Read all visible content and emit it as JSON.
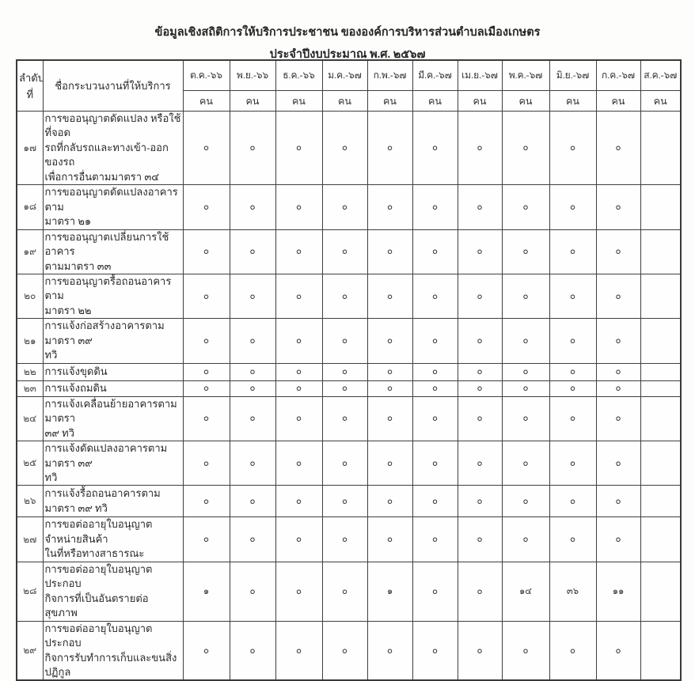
{
  "document": {
    "title_line1": "ข้อมูลเชิงสถิติการให้บริการประชาชน ขององค์การบริหารส่วนตำบลเมืองเกษตร",
    "title_line2": "ประจำปีงบประมาณ พ.ศ. ๒๕๖๗"
  },
  "table": {
    "headers": {
      "order": "ลำดับที่",
      "process": "ชื่อกระบวนงานที่ให้บริการ",
      "unit": "คน",
      "months": [
        "ต.ค.-๖๖",
        "พ.ย.-๖๖",
        "ธ.ค.-๖๖",
        "ม.ค.-๖๗",
        "ก.พ.-๖๗",
        "มี.ค.-๖๗",
        "เม.ย.-๖๗",
        "พ.ค.-๖๗",
        "มิ.ย.-๖๗",
        "ก.ค.-๖๗",
        "ส.ค.-๖๗"
      ]
    },
    "rows": [
      {
        "no": "๑๗",
        "name": "การขออนุญาตดัดแปลง  หรือใช้ที่จอด\nรถที่กลับรถและทางเข้า-ออกของรถ\nเพื่อการอื่นตามมาตรา ๓๔",
        "values": [
          "๐",
          "๐",
          "๐",
          "๐",
          "๐",
          "๐",
          "๐",
          "๐",
          "๐",
          "๐",
          ""
        ]
      },
      {
        "no": "๑๘",
        "name": "การขออนุญาตดัดแปลงอาคาร ตาม\nมาตรา ๒๑",
        "values": [
          "๐",
          "๐",
          "๐",
          "๐",
          "๐",
          "๐",
          "๐",
          "๐",
          "๐",
          "๐",
          ""
        ]
      },
      {
        "no": "๑๙",
        "name": "การขออนุญาตเปลี่ยนการใช้อาคาร\nตามมาตรา  ๓๓",
        "values": [
          "๐",
          "๐",
          "๐",
          "๐",
          "๐",
          "๐",
          "๐",
          "๐",
          "๐",
          "๐",
          ""
        ]
      },
      {
        "no": "๒๐",
        "name": "การขออนุญาตรื้อถอนอาคาร ตาม\nมาตรา ๒๒",
        "values": [
          "๐",
          "๐",
          "๐",
          "๐",
          "๐",
          "๐",
          "๐",
          "๐",
          "๐",
          "๐",
          ""
        ]
      },
      {
        "no": "๒๑",
        "name": "การแจ้งก่อสร้างอาคารตามมาตรา ๓๙\nทวิ",
        "values": [
          "๐",
          "๐",
          "๐",
          "๐",
          "๐",
          "๐",
          "๐",
          "๐",
          "๐",
          "๐",
          ""
        ]
      },
      {
        "no": "๒๒",
        "name": "การแจ้งขุดดิน",
        "values": [
          "๐",
          "๐",
          "๐",
          "๐",
          "๐",
          "๐",
          "๐",
          "๐",
          "๐",
          "๐",
          ""
        ]
      },
      {
        "no": "๒๓",
        "name": "การแจ้งถมดิน",
        "values": [
          "๐",
          "๐",
          "๐",
          "๐",
          "๐",
          "๐",
          "๐",
          "๐",
          "๐",
          "๐",
          ""
        ]
      },
      {
        "no": "๒๔",
        "name": "การแจ้งเคลื่อนย้ายอาคารตามมาตรา\n๓๙ ทวิ",
        "values": [
          "๐",
          "๐",
          "๐",
          "๐",
          "๐",
          "๐",
          "๐",
          "๐",
          "๐",
          "๐",
          ""
        ]
      },
      {
        "no": "๒๕",
        "name": "การแจ้งดัดแปลงอาคารตามมาตรา ๓๙\n ทวิ",
        "values": [
          "๐",
          "๐",
          "๐",
          "๐",
          "๐",
          "๐",
          "๐",
          "๐",
          "๐",
          "๐",
          ""
        ]
      },
      {
        "no": "๒๖",
        "name": "การแจ้งรื้อถอนอาคารตามมาตรา ๓๙ ทวิ",
        "values": [
          "๐",
          "๐",
          "๐",
          "๐",
          "๐",
          "๐",
          "๐",
          "๐",
          "๐",
          "๐",
          ""
        ]
      },
      {
        "no": "๒๗",
        "name": "การขอต่ออายุใบอนุญาตจำหน่ายสินค้า\nในที่หรือทางสาธารณะ",
        "values": [
          "๐",
          "๐",
          "๐",
          "๐",
          "๐",
          "๐",
          "๐",
          "๐",
          "๐",
          "๐",
          ""
        ]
      },
      {
        "no": "๒๘",
        "name": "การขอต่ออายุใบอนุญาตประกอบ\nกิจการที่เป็นอันตรายต่อสุขภาพ",
        "values": [
          "๑",
          "๐",
          "๐",
          "๐",
          "๑",
          "๐",
          "๐",
          "๑๔",
          "๓๖",
          "๑๑",
          ""
        ]
      },
      {
        "no": "๒๙",
        "name": "การขอต่ออายุใบอนุญาตประกอบ\nกิจการรับทำการเก็บและขนสิ่งปฏิกูล",
        "values": [
          "๐",
          "๐",
          "๐",
          "๐",
          "๐",
          "๐",
          "๐",
          "๐",
          "๐",
          "๐",
          ""
        ]
      }
    ]
  }
}
